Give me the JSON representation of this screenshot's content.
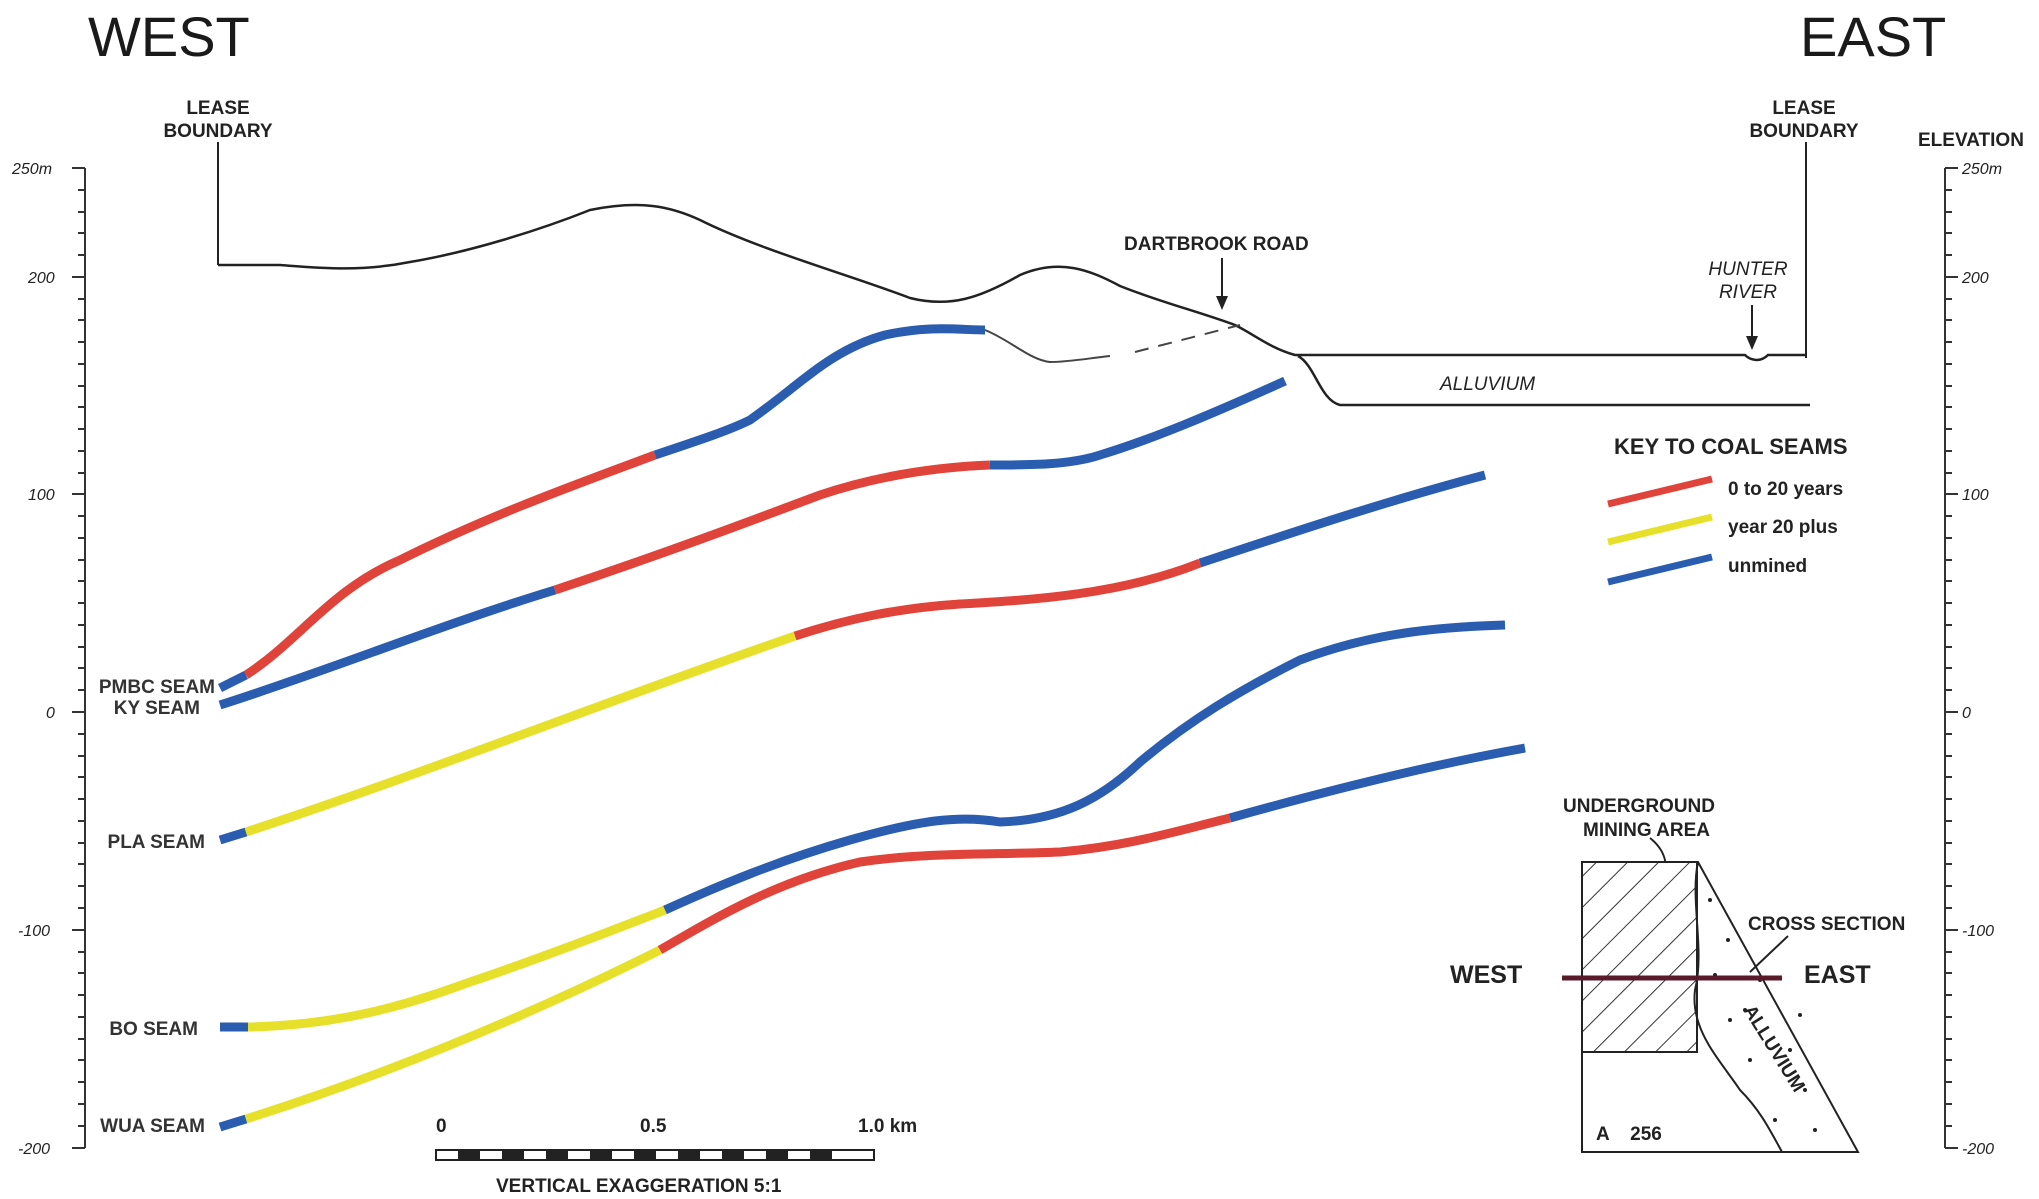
{
  "headings": {
    "west": "WEST",
    "east": "EAST"
  },
  "labels": {
    "lease_boundary_left": [
      "LEASE",
      "BOUNDARY"
    ],
    "lease_boundary_right": [
      "LEASE",
      "BOUNDARY"
    ],
    "elevation": "ELEVATION",
    "dartbrook_road": "DARTBROOK ROAD",
    "hunter_river": [
      "HUNTER",
      "RIVER"
    ],
    "alluvium": "ALLUVIUM"
  },
  "axis": {
    "left_ticks": [
      "250m",
      "200",
      "100",
      "0",
      "-100",
      "-200"
    ],
    "right_ticks": [
      "250m",
      "200",
      "100",
      "0",
      "-100",
      "-200"
    ]
  },
  "seams": {
    "pmbc": "PMBC SEAM",
    "ky": "KY SEAM",
    "pla": "PLA SEAM",
    "bo": "BO SEAM",
    "wua": "WUA SEAM"
  },
  "key": {
    "title": "KEY TO COAL SEAMS",
    "items": [
      {
        "label": "0 to 20 years",
        "color": "#e0433a"
      },
      {
        "label": "year 20 plus",
        "color": "#e6e02a"
      },
      {
        "label": "unmined",
        "color": "#2a5cb0"
      }
    ]
  },
  "scale": {
    "ticks": [
      "0",
      "0.5",
      "1.0 km"
    ],
    "caption": "VERTICAL EXAGGERATION 5:1"
  },
  "inset": {
    "underground": [
      "UNDERGROUND",
      "MINING AREA"
    ],
    "cross_section": "CROSS SECTION",
    "west": "WEST",
    "east": "EAST",
    "alluvium": "ALLUVIUM",
    "code": "A    256"
  }
}
